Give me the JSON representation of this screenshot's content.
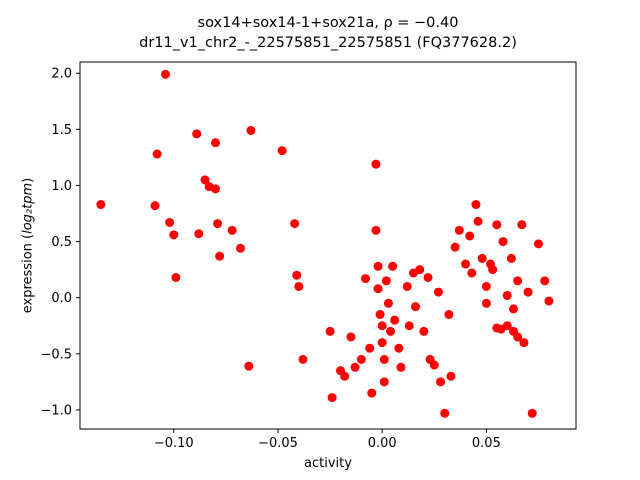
{
  "figure": {
    "title_line1": "sox14+sox14-1+sox21a, ρ = −0.40",
    "title_line2": "dr11_v1_chr2_-_22575851_22575851 (FQ377628.2)",
    "xlabel": "activity",
    "ylabel_prefix": "expression (",
    "ylabel_math": "log₂tpm",
    "ylabel_suffix": ")"
  },
  "chart_data": {
    "type": "scatter",
    "title": "sox14+sox14-1+sox21a, ρ = −0.40",
    "subtitle": "dr11_v1_chr2_-_22575851_22575851 (FQ377628.2)",
    "xlabel": "activity",
    "ylabel": "expression (log2 tpm)",
    "legend": "none",
    "grid": false,
    "marker_color": "#ff0000",
    "marker_radius": 4.5,
    "xlim": [
      -0.145,
      0.093
    ],
    "ylim": [
      -1.17,
      2.1
    ],
    "xticks": {
      "values": [
        -0.1,
        -0.05,
        0.0,
        0.05
      ],
      "labels": [
        "−0.10",
        "−0.05",
        "0.00",
        "0.05"
      ]
    },
    "yticks": {
      "values": [
        -1.0,
        -0.5,
        0.0,
        0.5,
        1.0,
        1.5,
        2.0
      ],
      "labels": [
        "−1.0",
        "−0.5",
        "0.0",
        "0.5",
        "1.0",
        "1.5",
        "2.0"
      ]
    },
    "points": [
      [
        -0.135,
        0.83
      ],
      [
        -0.109,
        0.82
      ],
      [
        -0.108,
        1.28
      ],
      [
        -0.104,
        1.99
      ],
      [
        -0.102,
        0.67
      ],
      [
        -0.1,
        0.56
      ],
      [
        -0.099,
        0.18
      ],
      [
        -0.089,
        1.46
      ],
      [
        -0.088,
        0.57
      ],
      [
        -0.085,
        1.05
      ],
      [
        -0.083,
        0.99
      ],
      [
        -0.08,
        1.38
      ],
      [
        -0.08,
        0.97
      ],
      [
        -0.079,
        0.66
      ],
      [
        -0.078,
        0.37
      ],
      [
        -0.072,
        0.6
      ],
      [
        -0.068,
        0.44
      ],
      [
        -0.064,
        -0.61
      ],
      [
        -0.063,
        1.49
      ],
      [
        -0.048,
        1.31
      ],
      [
        -0.042,
        0.66
      ],
      [
        -0.041,
        0.2
      ],
      [
        -0.04,
        0.1
      ],
      [
        -0.038,
        -0.55
      ],
      [
        -0.025,
        -0.3
      ],
      [
        -0.024,
        -0.89
      ],
      [
        -0.02,
        -0.65
      ],
      [
        -0.018,
        -0.7
      ],
      [
        -0.015,
        -0.35
      ],
      [
        -0.013,
        -0.62
      ],
      [
        -0.01,
        -0.55
      ],
      [
        -0.008,
        0.17
      ],
      [
        -0.006,
        -0.45
      ],
      [
        -0.005,
        -0.85
      ],
      [
        -0.003,
        1.19
      ],
      [
        -0.003,
        0.6
      ],
      [
        -0.002,
        0.28
      ],
      [
        -0.002,
        0.08
      ],
      [
        -0.001,
        -0.15
      ],
      [
        0.0,
        -0.25
      ],
      [
        0.0,
        -0.4
      ],
      [
        0.001,
        -0.55
      ],
      [
        0.001,
        -0.75
      ],
      [
        0.002,
        0.15
      ],
      [
        0.003,
        -0.05
      ],
      [
        0.004,
        -0.3
      ],
      [
        0.005,
        0.28
      ],
      [
        0.006,
        -0.2
      ],
      [
        0.008,
        -0.45
      ],
      [
        0.009,
        -0.62
      ],
      [
        0.012,
        0.1
      ],
      [
        0.013,
        -0.25
      ],
      [
        0.015,
        0.22
      ],
      [
        0.016,
        -0.08
      ],
      [
        0.018,
        0.25
      ],
      [
        0.02,
        -0.3
      ],
      [
        0.022,
        0.18
      ],
      [
        0.023,
        -0.55
      ],
      [
        0.025,
        -0.6
      ],
      [
        0.027,
        0.05
      ],
      [
        0.028,
        -0.75
      ],
      [
        0.03,
        -1.03
      ],
      [
        0.032,
        -0.15
      ],
      [
        0.033,
        -0.7
      ],
      [
        0.035,
        0.45
      ],
      [
        0.037,
        0.6
      ],
      [
        0.04,
        0.3
      ],
      [
        0.042,
        0.55
      ],
      [
        0.043,
        0.22
      ],
      [
        0.045,
        0.83
      ],
      [
        0.046,
        0.68
      ],
      [
        0.048,
        0.35
      ],
      [
        0.05,
        0.1
      ],
      [
        0.05,
        -0.05
      ],
      [
        0.052,
        0.3
      ],
      [
        0.053,
        0.25
      ],
      [
        0.055,
        0.65
      ],
      [
        0.055,
        -0.27
      ],
      [
        0.057,
        -0.28
      ],
      [
        0.058,
        0.5
      ],
      [
        0.06,
        0.02
      ],
      [
        0.06,
        -0.25
      ],
      [
        0.062,
        0.35
      ],
      [
        0.063,
        -0.1
      ],
      [
        0.063,
        -0.3
      ],
      [
        0.065,
        0.15
      ],
      [
        0.065,
        -0.35
      ],
      [
        0.067,
        0.65
      ],
      [
        0.068,
        -0.4
      ],
      [
        0.07,
        0.05
      ],
      [
        0.072,
        -1.03
      ],
      [
        0.075,
        0.48
      ],
      [
        0.078,
        0.15
      ],
      [
        0.08,
        -0.03
      ]
    ]
  }
}
